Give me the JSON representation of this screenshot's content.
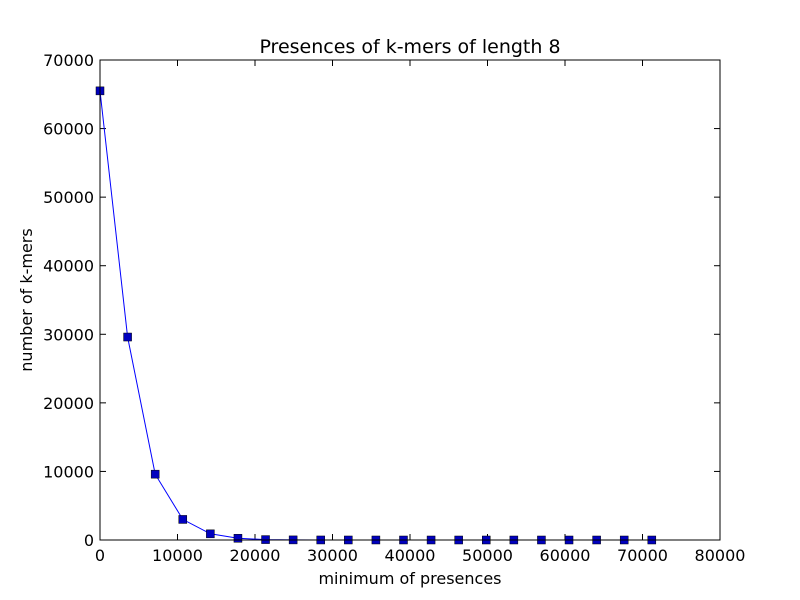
{
  "chart_data": {
    "type": "line",
    "title": "Presences of k-mers of length 8",
    "xlabel": "minimum of presences",
    "ylabel": "number of k-mers",
    "xlim": [
      0,
      80000
    ],
    "ylim": [
      0,
      70000
    ],
    "xticks": [
      "0",
      "10000",
      "20000",
      "30000",
      "40000",
      "50000",
      "60000",
      "70000",
      "80000"
    ],
    "yticks": [
      "0",
      "10000",
      "20000",
      "30000",
      "40000",
      "50000",
      "60000",
      "70000"
    ],
    "xtick_values": [
      0,
      10000,
      20000,
      30000,
      40000,
      50000,
      60000,
      70000,
      80000
    ],
    "ytick_values": [
      0,
      10000,
      20000,
      30000,
      40000,
      50000,
      60000,
      70000
    ],
    "grid": false,
    "marker": "square",
    "line_color": "#0000ff",
    "marker_color": "#0000bf",
    "series": [
      {
        "x": [
          0,
          3560,
          7120,
          10680,
          14240,
          17800,
          21360,
          24920,
          28480,
          32040,
          35600,
          39160,
          42720,
          46280,
          49840,
          53400,
          56960,
          60520,
          64080,
          67640,
          71200
        ],
        "y": [
          65500,
          29600,
          9600,
          3000,
          900,
          250,
          60,
          15,
          5,
          2,
          1,
          0,
          0,
          0,
          0,
          0,
          0,
          0,
          0,
          0,
          0
        ]
      }
    ]
  }
}
